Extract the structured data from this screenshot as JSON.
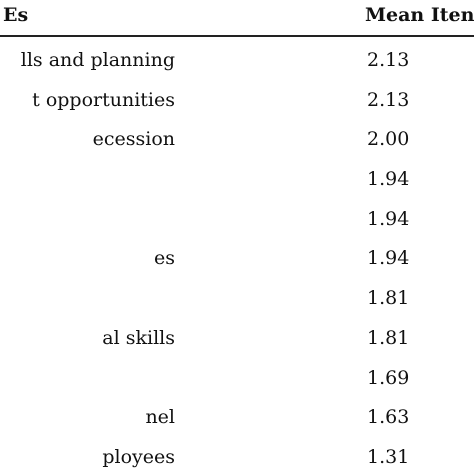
{
  "table": {
    "header": {
      "col1": "Es",
      "col2": "Mean Iten"
    },
    "rows": [
      {
        "label": "lls and planning",
        "value": "2.13"
      },
      {
        "label": "t opportunities",
        "value": "2.13"
      },
      {
        "label": "ecession",
        "value": "2.00"
      },
      {
        "label": "",
        "value": "1.94"
      },
      {
        "label": "",
        "value": "1.94"
      },
      {
        "label": "es",
        "value": "1.94"
      },
      {
        "label": "",
        "value": "1.81"
      },
      {
        "label": "al skills",
        "value": "1.81"
      },
      {
        "label": "",
        "value": "1.69"
      },
      {
        "label": "nel",
        "value": "1.63"
      },
      {
        "label": "ployees",
        "value": "1.31"
      }
    ]
  }
}
